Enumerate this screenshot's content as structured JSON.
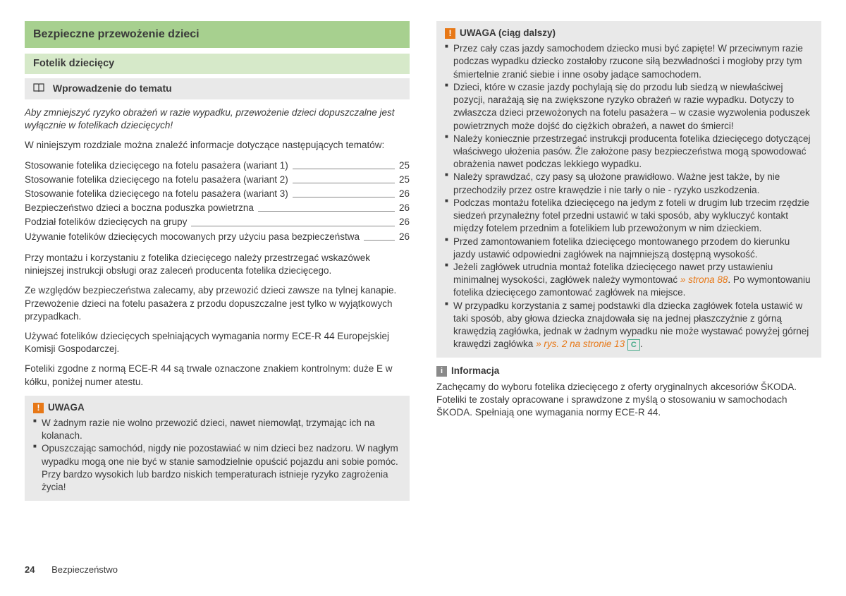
{
  "header": {
    "title": "Bezpieczne przewożenie dzieci",
    "subtitle": "Fotelik dziecięcy",
    "section": "Wprowadzenie do tematu"
  },
  "intro_italic": "Aby zmniejszyć ryzyko obrażeń w razie wypadku, przewożenie dzieci dopuszczalne jest wyłącznie w fotelikach dziecięcych!",
  "intro_para": "W niniejszym rozdziale można znaleźć informacje dotyczące następujących tematów:",
  "toc": [
    {
      "label": "Stosowanie fotelika dziecięcego na fotelu pasażera (wariant 1)",
      "page": "25"
    },
    {
      "label": "Stosowanie fotelika dziecięcego na fotelu pasażera (wariant 2)",
      "page": "25"
    },
    {
      "label": "Stosowanie fotelika dziecięcego na fotelu pasażera (wariant 3)",
      "page": "26"
    },
    {
      "label": "Bezpieczeństwo dzieci a boczna poduszka powietrzna",
      "page": "26"
    },
    {
      "label": "Podział fotelików dziecięcych na grupy",
      "page": "26"
    },
    {
      "label": "Używanie fotelików dziecięcych mocowanych przy użyciu pasa bezpieczeństwa",
      "page": "26"
    }
  ],
  "body_paras": [
    "Przy montażu i korzystaniu z fotelika dziecięcego należy przestrzegać wskazówek niniejszej instrukcji obsługi oraz zaleceń producenta fotelika dziecięcego.",
    "Ze względów bezpieczeństwa zalecamy, aby przewozić dzieci zawsze na tylnej kanapie. Przewożenie dzieci na fotelu pasażera z przodu dopuszczalne jest tylko w wyjątkowych przypadkach.",
    "Używać fotelików dziecięcych spełniających wymagania normy ECE-R 44 Europejskiej Komisji Gospodarczej.",
    "Foteliki zgodne z normą ECE-R 44 są trwale oznaczone znakiem kontrolnym: duże E w kółku, poniżej numer atestu."
  ],
  "uwaga1": {
    "title": "UWAGA",
    "items": [
      "W żadnym razie nie wolno przewozić dzieci, nawet niemowląt, trzymając ich na kolanach.",
      "Opuszczając samochód, nigdy nie pozostawiać w nim dzieci bez nadzoru. W nagłym wypadku mogą one nie być w stanie samodzielnie opuścić pojazdu ani sobie pomóc. Przy bardzo wysokich lub bardzo niskich temperaturach istnieje ryzyko zagrożenia życia!"
    ]
  },
  "uwaga2": {
    "title": "UWAGA (ciąg dalszy)",
    "items": [
      "Przez cały czas jazdy samochodem dziecko musi być zapięte! W przeciwnym razie podczas wypadku dziecko zostałoby rzucone siłą bezwładności i mogłoby przy tym śmiertelnie zranić siebie i inne osoby jadące samochodem.",
      "Dzieci, które w czasie jazdy pochylają się do przodu lub siedzą w niewłaściwej pozycji, narażają się na zwiększone ryzyko obrażeń w razie wypadku. Dotyczy to zwłaszcza dzieci przewożonych na fotelu pasażera – w czasie wyzwolenia poduszek powietrznych może dojść do ciężkich obrażeń, a nawet do śmierci!",
      "Należy koniecznie przestrzegać instrukcji producenta fotelika dziecięcego dotyczącej właściwego ułożenia pasów. Źle założone pasy bezpieczeństwa mogą spowodować obrażenia nawet podczas lekkiego wypadku.",
      "Należy sprawdzać, czy pasy są ułożone prawidłowo. Ważne jest także, by nie przechodziły przez ostre krawędzie i nie tarły o nie - ryzyko uszkodzenia.",
      "Podczas montażu fotelika dziecięcego na jedym z foteli w drugim lub trzecim rzędzie siedzeń przynależny fotel przedni ustawić w taki sposób, aby wykluczyć kontakt między fotelem przednim a fotelikiem lub przewożonym w nim dzieckiem.",
      "Przed zamontowaniem fotelika dziecięcego montowanego przodem do kierunku jazdy ustawić odpowiedni zagłówek na najmniejszą dostępną wysokość."
    ],
    "item_ref1_pre": "Jeżeli zagłówek utrudnia montaż fotelika dziecięcego nawet przy ustawieniu minimalnej wysokości, zagłówek należy wymontować ",
    "item_ref1_link": "» strona 88",
    "item_ref1_post": ". Po wymontowaniu fotelika dziecięcego zamontować zagłówek na miejsce.",
    "item_ref2_pre": "W przypadku korzystania z samej podstawki dla dziecka zagłówek fotela ustawić w taki sposób, aby głowa dziecka znajdowała się na jednej płaszczyźnie z górną krawędzią zagłówka, jednak w żadnym wypadku nie może wystawać powyżej górnej krawędzi zagłówka ",
    "item_ref2_link": "» rys. 2 ",
    "item_ref2_link2": "na stronie 13",
    "item_ref2_badge": "C"
  },
  "info": {
    "title": "Informacja",
    "text": "Zachęcamy do wyboru fotelika dziecięcego z oferty oryginalnych akcesoriów ŠKODA. Foteliki te zostały opracowane i sprawdzone z myślą o stosowaniu w samochodach ŠKODA. Spełniają one wymagania normy ECE-R 44."
  },
  "footer": {
    "page": "24",
    "section": "Bezpieczeństwo"
  }
}
